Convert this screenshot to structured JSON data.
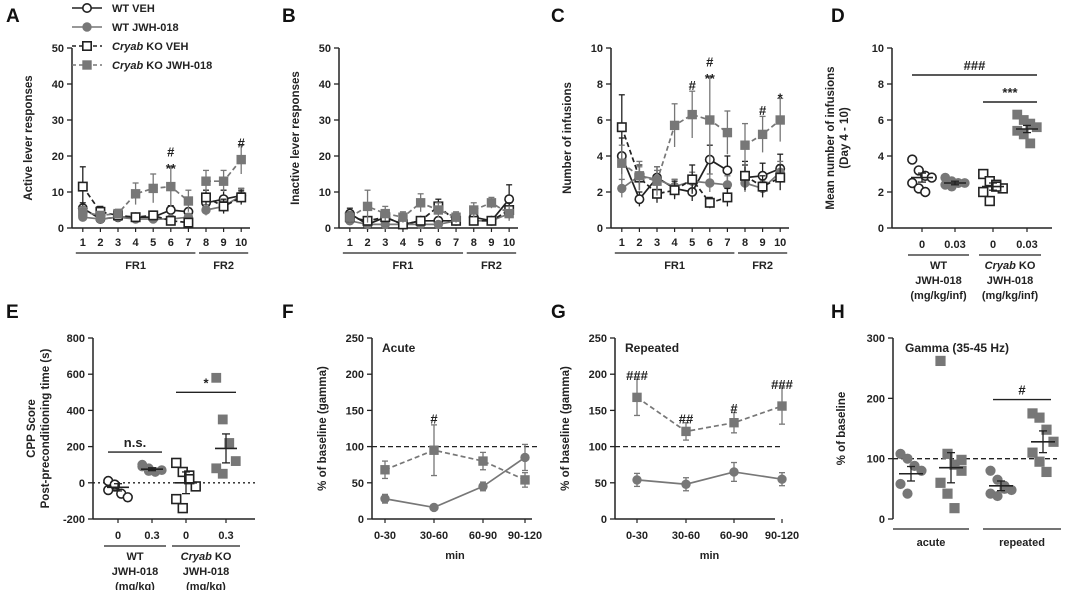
{
  "colors": {
    "black": "#222222",
    "gray": "#777777",
    "white_fill": "#ffffff",
    "dark_square": "#555555",
    "wt_circle_gray": "#888888"
  },
  "chart_data": [
    {
      "panel": "A",
      "type": "line",
      "ylabel": "Active lever responses",
      "ylim": [
        0,
        50
      ],
      "yticks": [
        0,
        10,
        20,
        30,
        40,
        50
      ],
      "x": [
        1,
        2,
        3,
        4,
        5,
        6,
        7,
        8,
        9,
        10
      ],
      "groups": [
        {
          "label": "FR1",
          "from": 1,
          "to": 7
        },
        {
          "label": "FR2",
          "from": 8,
          "to": 10
        }
      ],
      "legend": [
        {
          "name": "WT VEH",
          "marker": "circle-open",
          "dashed": false
        },
        {
          "name": "WT JWH-018",
          "marker": "circle-gray",
          "dashed": false
        },
        {
          "name": "Cryab KO VEH",
          "italic_prefix": "Cryab",
          "rest": " KO VEH",
          "marker": "square-open",
          "dashed": true
        },
        {
          "name": "Cryab KO JWH-018",
          "italic_prefix": "Cryab",
          "rest": " KO JWH-018",
          "marker": "square-gray",
          "dashed": true
        }
      ],
      "series": [
        {
          "name": "WT VEH",
          "marker": "circle-open",
          "dashed": false,
          "values": [
            5.5,
            2.5,
            3,
            3,
            3,
            5,
            4.5,
            7,
            8,
            9
          ],
          "err": [
            1.5,
            0.8,
            0.8,
            0.8,
            0.8,
            1.2,
            1,
            2,
            2.5,
            2
          ]
        },
        {
          "name": "WT JWH-018",
          "marker": "circle-gray",
          "dashed": false,
          "values": [
            3,
            2.5,
            3,
            2.5,
            2.5,
            2.5,
            3,
            5,
            6,
            9
          ],
          "err": [
            1,
            0.8,
            0.8,
            0.8,
            0.8,
            0.8,
            1,
            1.5,
            1.5,
            2
          ]
        },
        {
          "name": "Cryab KO VEH",
          "marker": "square-open",
          "dashed": true,
          "values": [
            11.5,
            4.5,
            3.5,
            3,
            3.5,
            2,
            1.5,
            8.5,
            6,
            8.5
          ],
          "err": [
            5.5,
            1.5,
            1,
            1,
            1.2,
            0.8,
            0.8,
            2,
            2,
            2
          ]
        },
        {
          "name": "Cryab KO JWH-018",
          "marker": "square-gray",
          "dashed": true,
          "values": [
            4.5,
            3.5,
            4,
            9.5,
            11,
            11.5,
            7.5,
            13,
            13,
            19
          ],
          "err": [
            1.5,
            1,
            1.2,
            3,
            4,
            5.5,
            3,
            3,
            3,
            4
          ]
        }
      ],
      "annotations": [
        {
          "x": 6,
          "y": 17,
          "text": "**"
        },
        {
          "x": 6,
          "y": 21.5,
          "text": "#"
        },
        {
          "x": 10,
          "y": 24,
          "text": "#"
        }
      ]
    },
    {
      "panel": "B",
      "type": "line",
      "ylabel": "Inactive lever responses",
      "ylim": [
        0,
        50
      ],
      "yticks": [
        0,
        10,
        20,
        30,
        40,
        50
      ],
      "x": [
        1,
        2,
        3,
        4,
        5,
        6,
        7,
        8,
        9,
        10
      ],
      "groups": [
        {
          "label": "FR1",
          "from": 1,
          "to": 7
        },
        {
          "label": "FR2",
          "from": 8,
          "to": 10
        }
      ],
      "series": [
        {
          "name": "WT VEH",
          "marker": "circle-open",
          "dashed": false,
          "values": [
            4,
            1,
            3,
            1,
            2,
            2,
            2,
            3,
            2,
            8
          ],
          "err": [
            1.5,
            0.5,
            1,
            0.8,
            1,
            1,
            1,
            1,
            1,
            4
          ]
        },
        {
          "name": "WT JWH-018",
          "marker": "circle-gray",
          "dashed": false,
          "values": [
            2,
            1,
            1,
            1,
            1,
            1,
            2,
            2,
            2,
            4
          ],
          "err": [
            1,
            0.5,
            0.5,
            0.5,
            0.5,
            0.5,
            1,
            1,
            1,
            1.5
          ]
        },
        {
          "name": "Cryab KO VEH",
          "marker": "square-open",
          "dashed": true,
          "values": [
            3,
            2,
            3,
            1,
            2,
            6,
            2,
            2,
            2,
            5
          ],
          "err": [
            1.5,
            1,
            1,
            0.5,
            1,
            2,
            1,
            1,
            1,
            2
          ]
        },
        {
          "name": "Cryab KO JWH-018",
          "marker": "square-gray",
          "dashed": true,
          "values": [
            3,
            6,
            4,
            3,
            7,
            5,
            3,
            5,
            7,
            4
          ],
          "err": [
            1.5,
            4.5,
            2,
            1.5,
            2.5,
            2,
            1.5,
            2,
            1.5,
            2
          ]
        }
      ]
    },
    {
      "panel": "C",
      "type": "line",
      "ylabel": "Number of infusions",
      "ylim": [
        0,
        10
      ],
      "yticks": [
        0,
        2,
        4,
        6,
        8,
        10
      ],
      "x": [
        1,
        2,
        3,
        4,
        5,
        6,
        7,
        8,
        9,
        10
      ],
      "groups": [
        {
          "label": "FR1",
          "from": 1,
          "to": 7
        },
        {
          "label": "FR2",
          "from": 8,
          "to": 10
        }
      ],
      "series": [
        {
          "name": "WT VEH",
          "marker": "circle-open",
          "dashed": false,
          "values": [
            4,
            1.6,
            2.8,
            2.2,
            2,
            3.8,
            3.2,
            2.8,
            2.9,
            3.3
          ],
          "err": [
            1,
            0.4,
            0.6,
            0.5,
            0.5,
            0.8,
            0.8,
            0.7,
            0.7,
            0.8
          ]
        },
        {
          "name": "WT JWH-018",
          "marker": "circle-gray",
          "dashed": false,
          "values": [
            2.2,
            2.9,
            2.7,
            2.3,
            2.6,
            2.5,
            2.4,
            2.5,
            2.2,
            3.1
          ],
          "err": [
            0.5,
            0.5,
            0.5,
            0.4,
            0.5,
            0.5,
            0.5,
            0.5,
            0.4,
            0.6
          ]
        },
        {
          "name": "Cryab KO VEH",
          "marker": "square-open",
          "dashed": true,
          "values": [
            5.6,
            2.8,
            1.9,
            2.1,
            2.7,
            1.4,
            1.7,
            2.9,
            2.3,
            2.8
          ],
          "err": [
            1.8,
            0.7,
            0.5,
            0.5,
            0.8,
            0.3,
            0.5,
            0.8,
            0.6,
            0.7
          ]
        },
        {
          "name": "Cryab KO JWH-018",
          "marker": "square-gray",
          "dashed": true,
          "values": [
            3.6,
            2.9,
            2.6,
            5.7,
            6.3,
            6,
            5.3,
            4.6,
            5.2,
            6
          ],
          "err": [
            1,
            0.8,
            0.8,
            1.2,
            1.3,
            2.4,
            1.2,
            1.2,
            1,
            1.2
          ]
        }
      ],
      "annotations": [
        {
          "x": 5,
          "y": 8,
          "text": "#"
        },
        {
          "x": 6,
          "y": 8.4,
          "text": "**"
        },
        {
          "x": 6,
          "y": 9.3,
          "text": "#"
        },
        {
          "x": 9,
          "y": 6.6,
          "text": "#"
        },
        {
          "x": 10,
          "y": 7.3,
          "text": "*"
        }
      ]
    },
    {
      "panel": "D",
      "type": "scatter",
      "ylabel": "Mean number of infusions",
      "ylabel2": "(Day 4 - 10)",
      "ylim": [
        0,
        10
      ],
      "yticks": [
        0,
        2,
        4,
        6,
        8,
        10
      ],
      "categories": [
        "0",
        "0.03",
        "0",
        "0.03"
      ],
      "group_labels": [
        {
          "lines": [
            "WT",
            "JWH-018",
            "(mg/kg/inf)"
          ]
        },
        {
          "italic": "Cryab",
          "rest": " KO",
          "lines": [
            "JWH-018",
            "(mg/kg/inf)"
          ]
        }
      ],
      "groups": [
        {
          "marker": "circle-open",
          "points": [
            3.8,
            3.2,
            2.9,
            2.8,
            2.5,
            2.2,
            2.0
          ],
          "mean": 2.8,
          "sem": 0.25
        },
        {
          "marker": "circle-gray",
          "points": [
            2.8,
            2.6,
            2.5,
            2.5,
            2.4,
            2.3,
            2.5
          ],
          "mean": 2.5,
          "sem": 0.1
        },
        {
          "marker": "square-open",
          "points": [
            3.0,
            2.6,
            2.4,
            2.2,
            2.0,
            1.5,
            2.3
          ],
          "mean": 2.3,
          "sem": 0.2
        },
        {
          "marker": "square-gray",
          "points": [
            6.3,
            6.0,
            5.8,
            5.6,
            5.4,
            5.2,
            4.7
          ],
          "mean": 5.5,
          "sem": 0.2
        }
      ],
      "brackets": [
        {
          "from": 0,
          "to": 3,
          "y": 8.5,
          "text": "###"
        },
        {
          "from": 2,
          "to": 3,
          "y": 7.0,
          "text": "***"
        }
      ]
    },
    {
      "panel": "E",
      "type": "scatter",
      "ylabel": "CPP Score",
      "ylabel2": "Post-preconditioning time (s)",
      "ylim": [
        -200,
        800
      ],
      "yticks": [
        -200,
        0,
        200,
        400,
        600,
        800
      ],
      "categories": [
        "0",
        "0.3",
        "0",
        "0.3"
      ],
      "group_labels": [
        {
          "lines": [
            "WT",
            "JWH-018",
            "(mg/kg)"
          ]
        },
        {
          "italic": "Cryab",
          "rest": " KO",
          "lines": [
            "JWH-018",
            "(mg/kg)"
          ]
        }
      ],
      "groups": [
        {
          "marker": "circle-open",
          "points": [
            10,
            -20,
            -60,
            -80,
            -40,
            -10
          ],
          "mean": -25,
          "sem": 20
        },
        {
          "marker": "circle-gray",
          "points": [
            100,
            80,
            60,
            70,
            90,
            65
          ],
          "mean": 75,
          "sem": 8
        },
        {
          "marker": "square-open",
          "points": [
            110,
            60,
            40,
            -20,
            -90,
            -140,
            20
          ],
          "mean": 0,
          "sem": 60
        },
        {
          "marker": "square-gray",
          "points": [
            580,
            350,
            220,
            120,
            80,
            50
          ],
          "mean": 190,
          "sem": 80
        }
      ],
      "brackets": [
        {
          "from": 0,
          "to": 1,
          "y": 170,
          "text": "n.s."
        },
        {
          "from": 2,
          "to": 3,
          "y": 500,
          "text": "*"
        }
      ],
      "zero_line": true
    },
    {
      "panel": "F",
      "type": "line",
      "title": "Acute",
      "ylabel": "% of baseline (gamma)",
      "xlabel": "min",
      "ylim": [
        0,
        250
      ],
      "yticks": [
        0,
        50,
        100,
        150,
        200,
        250
      ],
      "categories": [
        "0-30",
        "30-60",
        "60-90",
        "90-120"
      ],
      "series": [
        {
          "marker": "square-gray",
          "dashed": true,
          "values": [
            68,
            95,
            80,
            54
          ],
          "err": [
            12,
            35,
            12,
            10
          ]
        },
        {
          "marker": "circle-gray",
          "dashed": false,
          "values": [
            28,
            16,
            45,
            85
          ],
          "err": [
            6,
            3,
            6,
            18
          ]
        }
      ],
      "baseline": 100,
      "annotations": [
        {
          "x": 1,
          "y": 140,
          "text": "#"
        }
      ]
    },
    {
      "panel": "G",
      "type": "line",
      "title": "Repeated",
      "ylabel": "% of baseline (gamma)",
      "xlabel": "min",
      "ylim": [
        0,
        250
      ],
      "yticks": [
        0,
        50,
        100,
        150,
        200,
        250
      ],
      "categories": [
        "0-30",
        "30-60",
        "60-90",
        "90-120"
      ],
      "series": [
        {
          "marker": "square-gray",
          "dashed": true,
          "values": [
            168,
            121,
            133,
            156
          ],
          "err": [
            25,
            12,
            14,
            25
          ]
        },
        {
          "marker": "circle-gray",
          "dashed": false,
          "values": [
            54,
            48,
            65,
            55
          ],
          "err": [
            9,
            9,
            13,
            9
          ]
        }
      ],
      "baseline": 100,
      "annotations": [
        {
          "x": 0,
          "y": 200,
          "text": "###"
        },
        {
          "x": 1,
          "y": 140,
          "text": "##"
        },
        {
          "x": 2,
          "y": 155,
          "text": "#"
        },
        {
          "x": 3,
          "y": 188,
          "text": "###"
        }
      ]
    },
    {
      "panel": "H",
      "type": "scatter",
      "title": "Gamma (35-45 Hz)",
      "ylabel": "% of baseline",
      "ylim": [
        0,
        300
      ],
      "yticks": [
        0,
        100,
        200,
        300
      ],
      "categories": [
        "acute",
        "repeated"
      ],
      "groups": [
        {
          "cat": 0,
          "marker": "circle-gray",
          "points": [
            108,
            100,
            88,
            80,
            58,
            42
          ],
          "mean": 75,
          "sem": 12
        },
        {
          "cat": 0,
          "marker": "square-gray",
          "points": [
            262,
            108,
            90,
            80,
            60,
            42,
            18,
            98
          ],
          "mean": 85,
          "sem": 25
        },
        {
          "cat": 1,
          "marker": "circle-gray",
          "points": [
            80,
            65,
            55,
            48,
            42,
            38,
            50
          ],
          "mean": 55,
          "sem": 8
        },
        {
          "cat": 1,
          "marker": "square-gray",
          "points": [
            175,
            168,
            148,
            128,
            110,
            95,
            78
          ],
          "mean": 128,
          "sem": 18
        }
      ],
      "baseline": 100,
      "brackets": [
        {
          "from": 2,
          "to": 3,
          "y": 198,
          "text": "#"
        }
      ]
    }
  ],
  "panel_letters": [
    "A",
    "B",
    "C",
    "D",
    "E",
    "F",
    "G",
    "H"
  ]
}
